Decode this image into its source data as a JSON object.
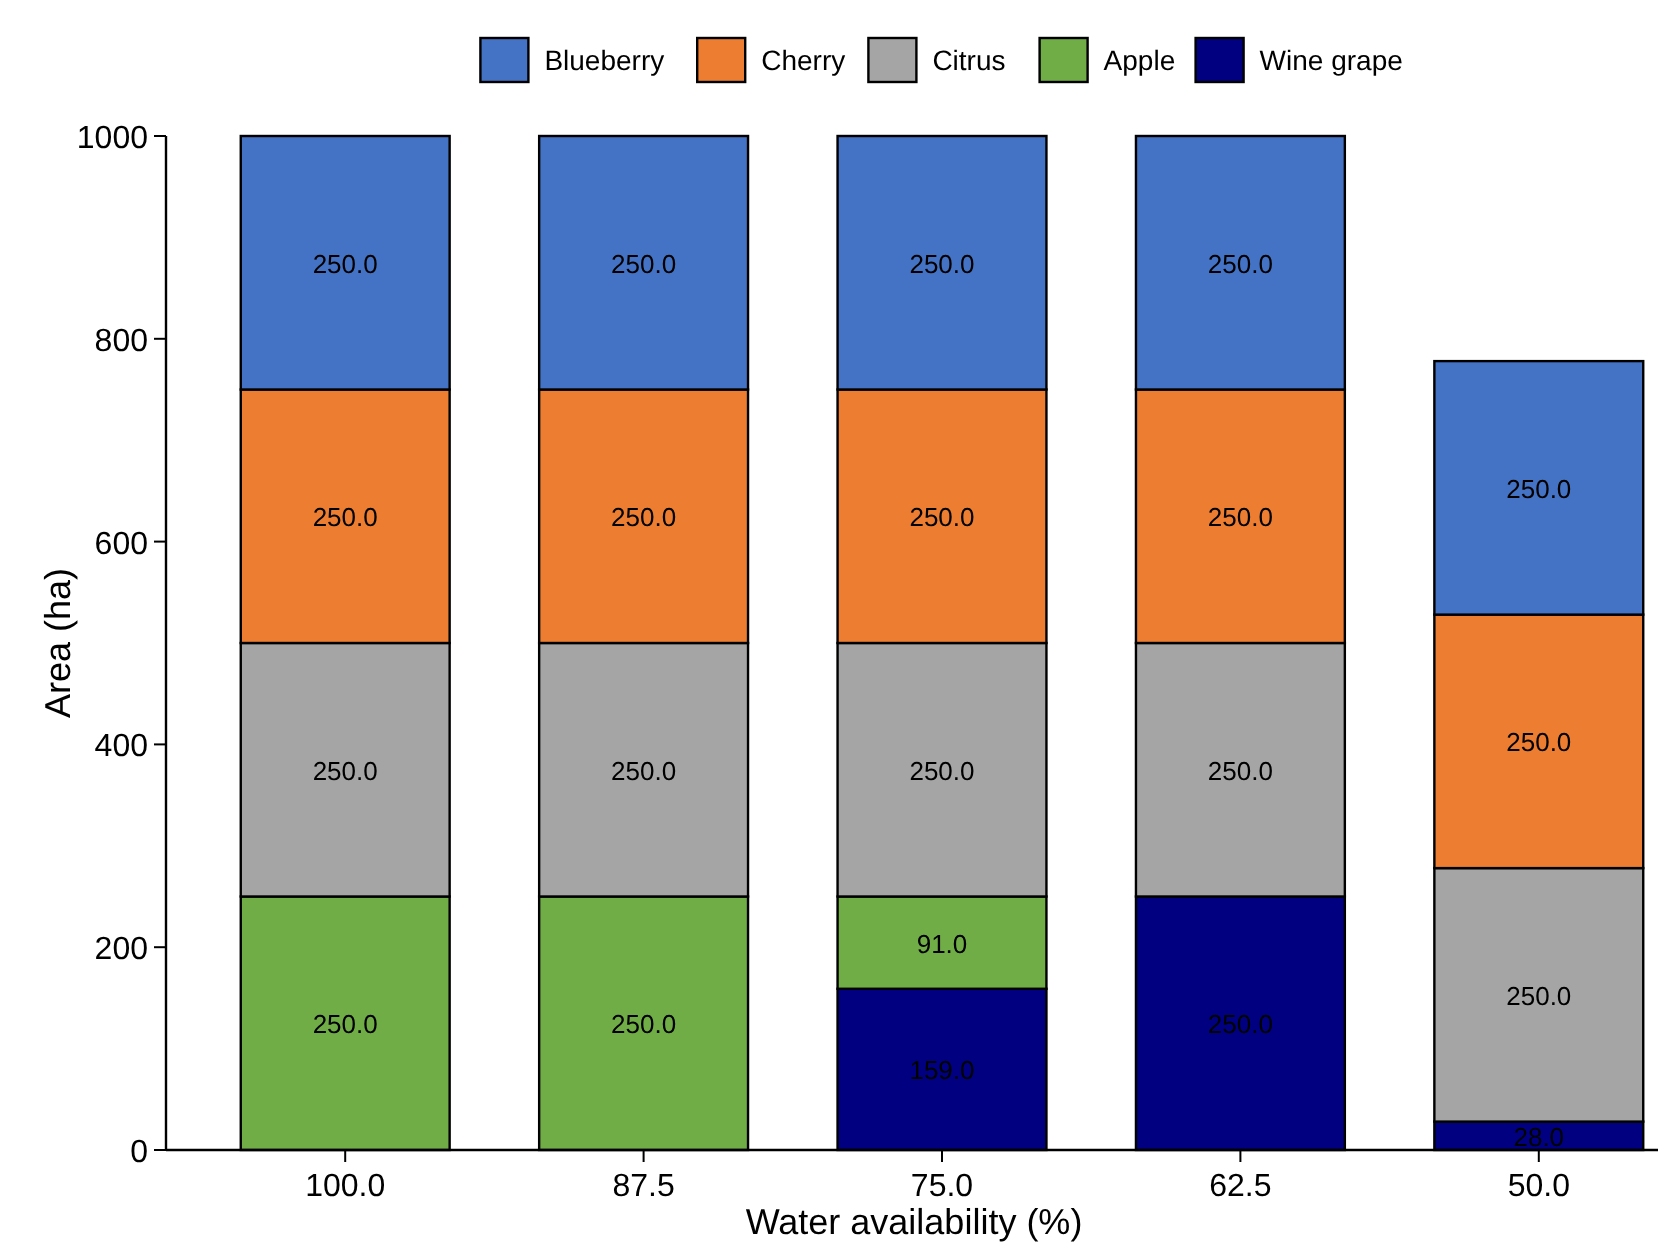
{
  "chart_data": {
    "type": "bar",
    "stacked": true,
    "xlabel": "Water availability (%)",
    "ylabel": "Area (ha)",
    "categories": [
      "100.0",
      "87.5",
      "75.0",
      "62.5",
      "50.0"
    ],
    "ylim": [
      0,
      1000
    ],
    "yticks": [
      0,
      200,
      400,
      600,
      800,
      1000
    ],
    "grid": false,
    "legend": "top",
    "series": [
      {
        "name": "Wine grape",
        "color": "#000080",
        "values": [
          null,
          null,
          159,
          250,
          28
        ],
        "value_labels": [
          null,
          null,
          "159.0",
          "250.0",
          "28.0"
        ]
      },
      {
        "name": "Apple",
        "color": "#70ad47",
        "values": [
          250,
          250,
          91,
          null,
          null
        ],
        "value_labels": [
          "250.0",
          "250.0",
          "91.0",
          null,
          null
        ]
      },
      {
        "name": "Citrus",
        "color": "#a5a5a5",
        "values": [
          250,
          250,
          250,
          250,
          250
        ],
        "value_labels": [
          "250.0",
          "250.0",
          "250.0",
          "250.0",
          "250.0"
        ]
      },
      {
        "name": "Cherry",
        "color": "#ed7d31",
        "values": [
          250,
          250,
          250,
          250,
          250
        ],
        "value_labels": [
          "250.0",
          "250.0",
          "250.0",
          "250.0",
          "250.0"
        ]
      },
      {
        "name": "Blueberry",
        "color": "#4472c4",
        "values": [
          250,
          250,
          250,
          250,
          250
        ],
        "value_labels": [
          "250.0",
          "250.0",
          "250.0",
          "250.0",
          "250.0"
        ]
      }
    ]
  }
}
